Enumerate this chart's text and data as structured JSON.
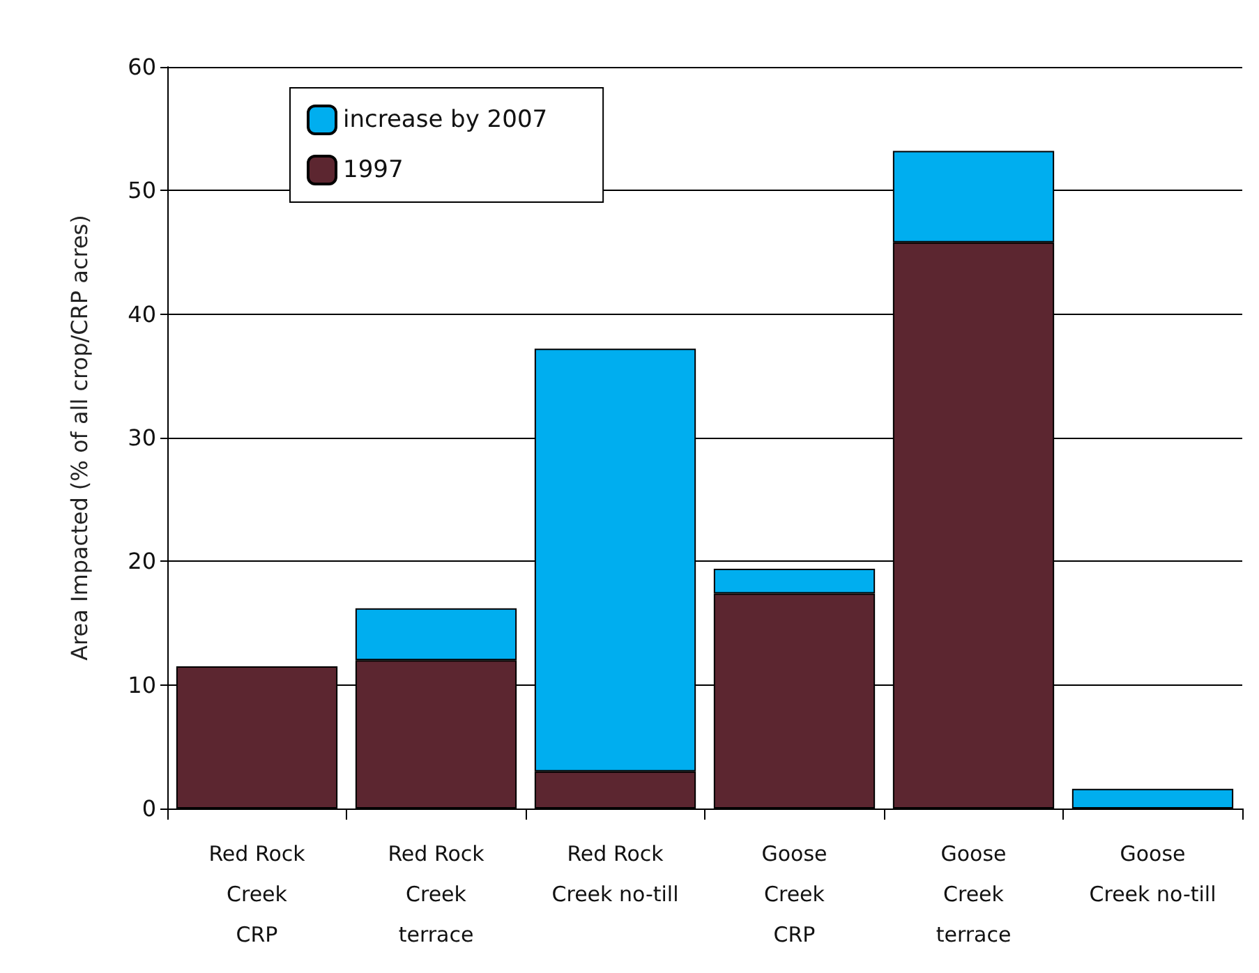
{
  "chart_data": {
    "type": "bar",
    "ylabel": "Area Impacted (% of all crop/CRP acres)",
    "categories": [
      "Red Rock\nCreek\nCRP",
      "Red Rock\nCreek\nterrace",
      "Red Rock\nCreek no-till",
      "Goose\nCreek\nCRP",
      "Goose\nCreek\nterrace",
      "Goose\nCreek no-till"
    ],
    "stacked": true,
    "series": [
      {
        "name": "1997",
        "color": "#5c2630",
        "values": [
          11.5,
          12.0,
          3.0,
          17.4,
          45.8,
          null
        ]
      },
      {
        "name": "increase by 2007",
        "color": "#00aeef",
        "values": [
          null,
          4.2,
          34.2,
          2.0,
          7.4,
          1.6
        ]
      }
    ],
    "ylim": [
      0,
      60
    ],
    "yticks": [
      0,
      10,
      20,
      30,
      40,
      50,
      60
    ],
    "grid": "y",
    "legend": "top left"
  }
}
